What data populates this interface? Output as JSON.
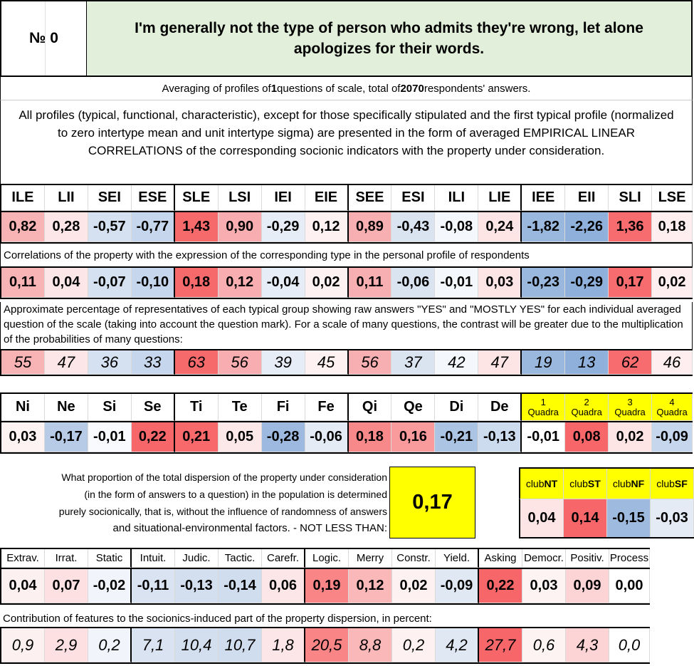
{
  "header": {
    "number": "№ 0",
    "question": "I'm generally not the type of person who admits they're wrong, let alone apologizes for their words."
  },
  "averaging": {
    "prefix": "Averaging of profiles of ",
    "questions": "1",
    "middle": " questions of scale, total of ",
    "respondents": "2070",
    "suffix": " respondents' answers."
  },
  "description": "All profiles (typical, functional, characteristic), except for those specifically stipulated and the first typical profile (normalized to zero intertype mean and unit intertype sigma) are presented in the form of averaged EMPIRICAL LINEAR CORRELATIONS of the corresponding socionic indicators with the property under consideration.",
  "types": {
    "labels": [
      "ILE",
      "LII",
      "SEI",
      "ESE",
      "SLE",
      "LSI",
      "IEI",
      "EIE",
      "SEE",
      "ESI",
      "ILI",
      "LIE",
      "IEE",
      "EII",
      "SLI",
      "LSE"
    ],
    "profile": [
      "0,82",
      "0,28",
      "-0,57",
      "-0,77",
      "1,43",
      "0,90",
      "-0,29",
      "0,12",
      "0,89",
      "-0,43",
      "-0,08",
      "0,24",
      "-1,82",
      "-2,26",
      "1,36",
      "0,18"
    ],
    "profile_colors": [
      "#f8b4b5",
      "#fde6e7",
      "#d5e1f0",
      "#c6d6ec",
      "#f76a6c",
      "#f8aeb0",
      "#e6edf6",
      "#fef1f2",
      "#f8afb1",
      "#dae4f1",
      "#f4f7fb",
      "#fde4e5",
      "#9ab8de",
      "#8eb0da",
      "#f76c6e",
      "#feeeef"
    ],
    "correlation_caption": "Correlations of the property with the expression of the corresponding type in the personal profile of respondents",
    "correlation": [
      "0,11",
      "0,04",
      "-0,07",
      "-0,10",
      "0,18",
      "0,12",
      "-0,04",
      "0,02",
      "0,11",
      "-0,06",
      "-0,01",
      "0,03",
      "-0,23",
      "-0,29",
      "0,17",
      "0,02"
    ],
    "correlation_colors": [
      "#f8b4b5",
      "#fde6e7",
      "#d5e1f0",
      "#c6d6ec",
      "#f76a6c",
      "#f8aeb0",
      "#e6edf6",
      "#fef1f2",
      "#f8afb1",
      "#dae4f1",
      "#f4f7fb",
      "#fde4e5",
      "#9ab8de",
      "#8eb0da",
      "#f76c6e",
      "#feeeef"
    ],
    "percentage_caption": "Approximate percentage of representatives of each typical group showing raw answers \"YES\" and \"MOSTLY YES\" for each individual averaged question of the scale (taking into account the question mark). For a scale of many questions, the contrast will be greater due to the multiplication of the probabilities of many questions:",
    "percentage": [
      "55",
      "47",
      "36",
      "33",
      "63",
      "56",
      "39",
      "45",
      "56",
      "37",
      "42",
      "47",
      "19",
      "13",
      "62",
      "46"
    ],
    "percentage_colors": [
      "#f8b4b5",
      "#fde6e7",
      "#d5e1f0",
      "#c6d6ec",
      "#f76a6c",
      "#f8aeb0",
      "#e6edf6",
      "#fef1f2",
      "#f8afb1",
      "#dae4f1",
      "#f4f7fb",
      "#fde4e5",
      "#9ab8de",
      "#8eb0da",
      "#f76c6e",
      "#feeeef"
    ]
  },
  "functions": {
    "labels": [
      "Ni",
      "Ne",
      "Si",
      "Se",
      "Ti",
      "Te",
      "Fi",
      "Fe",
      "Qi",
      "Qe",
      "Di",
      "De"
    ],
    "values": [
      "0,03",
      "-0,17",
      "-0,01",
      "0,22",
      "0,21",
      "0,05",
      "-0,28",
      "-0,06",
      "0,18",
      "0,16",
      "-0,21",
      "-0,13"
    ],
    "colors": [
      "#fef3f3",
      "#b7cbe6",
      "#f9fafd",
      "#f76769",
      "#f7696b",
      "#fde8e9",
      "#9db9df",
      "#e4ebf5",
      "#f8898b",
      "#f99a9c",
      "#acc4e3",
      "#ccdbee"
    ]
  },
  "quadras": {
    "labels": [
      [
        "1",
        "Quadra"
      ],
      [
        "2",
        "Quadra"
      ],
      [
        "3",
        "Quadra"
      ],
      [
        "4",
        "Quadra"
      ]
    ],
    "values": [
      "-0,01",
      "0,08",
      "0,02",
      "-0,09"
    ],
    "colors": [
      "#ffffff",
      "#f76769",
      "#fde5e6",
      "#c6d6ec"
    ],
    "header_color": "#ffff00"
  },
  "dispersion": {
    "lines": [
      "What proportion of the total dispersion of the property under consideration",
      "(in the form of answers to a question) in the population is determined",
      "purely socionically, that is, without the influence of randomness of answers",
      "and situational-environmental factors. - NOT LESS THAN:"
    ],
    "value": "0,17",
    "value_color": "#ffff00"
  },
  "clubs": {
    "labels": [
      [
        "club",
        "NT"
      ],
      [
        "club",
        "ST"
      ],
      [
        "club",
        "NF"
      ],
      [
        "club",
        "SF"
      ]
    ],
    "values": [
      "0,04",
      "0,14",
      "-0,15",
      "-0,03"
    ],
    "colors": [
      "#fde5e6",
      "#f76769",
      "#9fbadf",
      "#e4ebf5"
    ]
  },
  "traits": {
    "labels": [
      "Extrav.",
      "Irrat.",
      "Static",
      "Intuit.",
      "Judic.",
      "Tactic.",
      "Carefr.",
      "Logic.",
      "Merry",
      "Constr.",
      "Yield.",
      "Asking",
      "Democr.",
      "Positiv.",
      "Process"
    ],
    "values": [
      "0,04",
      "0,07",
      "-0,02",
      "-0,11",
      "-0,13",
      "-0,14",
      "0,06",
      "0,19",
      "0,12",
      "0,02",
      "-0,09",
      "0,22",
      "0,03",
      "0,09",
      "0,00"
    ],
    "value_colors": [
      "#fdf0f0",
      "#fde0e1",
      "#f1f4fa",
      "#d9e3f1",
      "#d3dfef",
      "#d0ddee",
      "#fde6e7",
      "#f98587",
      "#fbb8b9",
      "#fdf1f2",
      "#e0e8f4",
      "#f76769",
      "#fdf3f3",
      "#fcd4d5",
      "#ffffff"
    ],
    "contribution_caption": "Contribution of features to the sociomics-induced part of the property dispersion, in percent:",
    "contribution": [
      "0,9",
      "2,9",
      "0,2",
      "7,1",
      "10,4",
      "10,7",
      "1,8",
      "20,5",
      "8,8",
      "0,2",
      "4,2",
      "27,7",
      "0,6",
      "4,3",
      "0,0"
    ],
    "contribution_colors": [
      "#fdf0f0",
      "#fde0e1",
      "#f1f4fa",
      "#d9e3f1",
      "#d3dfef",
      "#d0ddee",
      "#fde6e7",
      "#f98587",
      "#fbb8b9",
      "#fdf1f2",
      "#e0e8f4",
      "#f76769",
      "#fdf3f3",
      "#fcd4d5",
      "#ffffff"
    ]
  }
}
